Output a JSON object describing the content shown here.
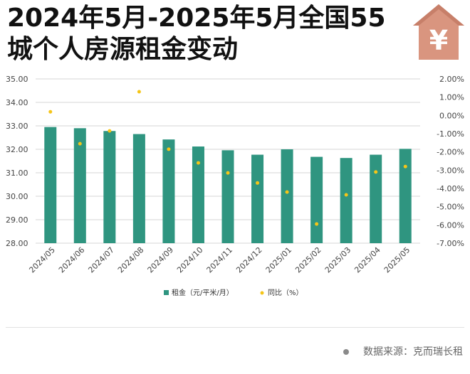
{
  "title": {
    "line1": "2024年5月-2025年5月全国55",
    "line2": "城个人房源租金变动"
  },
  "logo": {
    "icon": "yen-house-icon",
    "glyph": "¥",
    "color": "#d9957f"
  },
  "source": {
    "text": "数据来源：克而瑞长租"
  },
  "colors": {
    "bar": "#2f9580",
    "dot": "#f5c518",
    "grid": "#d6d6d6",
    "axis_text": "#444444"
  },
  "chart_data": {
    "type": "bar",
    "categories": [
      "2024/05",
      "2024/06",
      "2024/07",
      "2024/08",
      "2024/09",
      "2024/10",
      "2024/11",
      "2024/12",
      "2025/01",
      "2025/02",
      "2025/03",
      "2025/04",
      "2025/05"
    ],
    "series": [
      {
        "name": "租金（元/平米/月）",
        "type": "bar",
        "axis": "left",
        "values": [
          32.95,
          32.9,
          32.78,
          32.65,
          32.42,
          32.12,
          31.96,
          31.77,
          32.0,
          31.68,
          31.63,
          31.77,
          32.02
        ]
      },
      {
        "name": "同比（%）",
        "type": "scatter",
        "axis": "right",
        "values": [
          0.2,
          -1.55,
          -0.85,
          1.3,
          -1.85,
          -2.6,
          -3.15,
          -3.7,
          -4.2,
          -5.95,
          -4.35,
          -3.1,
          -2.8
        ]
      }
    ],
    "y_left": {
      "ylim": [
        28.0,
        35.0
      ],
      "ticks": [
        "28.00",
        "29.00",
        "30.00",
        "31.00",
        "32.00",
        "33.00",
        "34.00",
        "35.00"
      ]
    },
    "y_right": {
      "ylim": [
        -7.0,
        2.0
      ],
      "ticks": [
        "-7.00%",
        "-6.00%",
        "-5.00%",
        "-4.00%",
        "-3.00%",
        "-2.00%",
        "-1.00%",
        "0.00%",
        "1.00%",
        "2.00%"
      ]
    },
    "grid": true,
    "legend_position": "bottom-center"
  }
}
